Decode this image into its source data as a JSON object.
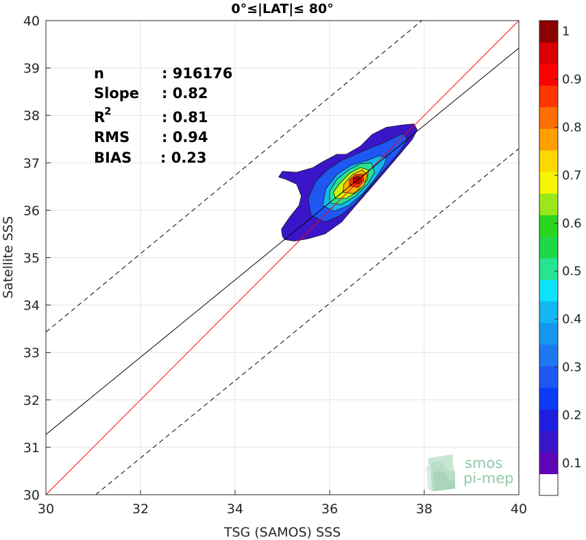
{
  "chart_data": {
    "type": "contour density scatter",
    "title": "0°≤|LAT|≤ 80°",
    "xlabel": "TSG (SAMOS) SSS",
    "ylabel": "Satellite SSS",
    "xlim": [
      30,
      40
    ],
    "ylim": [
      30,
      40
    ],
    "xticks": [
      "30",
      "32",
      "34",
      "36",
      "38",
      "40"
    ],
    "yticks": [
      "30",
      "31",
      "32",
      "33",
      "34",
      "35",
      "36",
      "37",
      "38",
      "39",
      "40"
    ],
    "grid": true,
    "stats": [
      {
        "label": "n",
        "value": ": 916176"
      },
      {
        "label": "Slope",
        "value": ": 0.82"
      },
      {
        "label": "R",
        "sup": "2",
        "value": ": 0.81"
      },
      {
        "label": "RMS",
        "value": ": 0.94"
      },
      {
        "label": "BIAS",
        "value": ": 0.23"
      }
    ],
    "lines": [
      {
        "name": "one-to-one",
        "color": "#ff0000",
        "style": "solid",
        "points": [
          [
            30,
            30
          ],
          [
            40,
            40
          ]
        ]
      },
      {
        "name": "regression",
        "color": "#000000",
        "style": "solid",
        "points": [
          [
            30,
            31.27
          ],
          [
            40,
            39.42
          ]
        ]
      },
      {
        "name": "upper-bound",
        "color": "#000000",
        "style": "dashed",
        "points": [
          [
            30,
            33.43
          ],
          [
            37.95,
            40
          ]
        ]
      },
      {
        "name": "lower-bound",
        "color": "#000000",
        "style": "dashed",
        "points": [
          [
            31.05,
            30
          ],
          [
            40,
            37.3
          ]
        ]
      }
    ],
    "contours": [
      {
        "level": 0.05,
        "color": "#3a16c8",
        "points": [
          [
            35.0,
            35.45
          ],
          [
            35.05,
            35.38
          ],
          [
            35.25,
            35.35
          ],
          [
            35.55,
            35.4
          ],
          [
            35.9,
            35.5
          ],
          [
            36.25,
            35.75
          ],
          [
            36.55,
            36.1
          ],
          [
            36.9,
            36.5
          ],
          [
            37.2,
            36.85
          ],
          [
            37.5,
            37.2
          ],
          [
            37.75,
            37.5
          ],
          [
            37.85,
            37.7
          ],
          [
            37.78,
            37.82
          ],
          [
            37.55,
            37.8
          ],
          [
            37.2,
            37.75
          ],
          [
            36.9,
            37.6
          ],
          [
            36.65,
            37.35
          ],
          [
            36.35,
            37.18
          ],
          [
            36.15,
            37.18
          ],
          [
            35.85,
            37.02
          ],
          [
            35.65,
            36.9
          ],
          [
            35.3,
            36.8
          ],
          [
            35.0,
            36.82
          ],
          [
            34.92,
            36.7
          ],
          [
            35.08,
            36.65
          ],
          [
            35.3,
            36.55
          ],
          [
            35.4,
            36.3
          ],
          [
            35.35,
            36.1
          ],
          [
            35.15,
            35.85
          ],
          [
            34.98,
            35.6
          ]
        ]
      },
      {
        "level": 0.15,
        "color": "#1f57f5",
        "points": [
          [
            35.6,
            35.9
          ],
          [
            35.9,
            35.75
          ],
          [
            36.25,
            35.9
          ],
          [
            36.55,
            36.15
          ],
          [
            36.85,
            36.5
          ],
          [
            37.15,
            36.85
          ],
          [
            37.45,
            37.2
          ],
          [
            37.65,
            37.5
          ],
          [
            37.55,
            37.62
          ],
          [
            37.2,
            37.45
          ],
          [
            36.95,
            37.35
          ],
          [
            36.6,
            37.2
          ],
          [
            36.25,
            37.05
          ],
          [
            35.95,
            36.85
          ],
          [
            35.7,
            36.6
          ],
          [
            35.55,
            36.25
          ]
        ]
      },
      {
        "level": 0.3,
        "color": "#12b6f0",
        "points": [
          [
            35.85,
            36.1
          ],
          [
            36.1,
            35.98
          ],
          [
            36.4,
            36.1
          ],
          [
            36.7,
            36.35
          ],
          [
            36.95,
            36.65
          ],
          [
            37.15,
            36.95
          ],
          [
            37.2,
            37.1
          ],
          [
            37.05,
            37.15
          ],
          [
            36.8,
            37.05
          ],
          [
            36.45,
            36.95
          ],
          [
            36.15,
            36.75
          ],
          [
            35.92,
            36.45
          ]
        ]
      },
      {
        "level": 0.45,
        "color": "#26e48f",
        "points": [
          [
            36.0,
            36.15
          ],
          [
            36.25,
            36.12
          ],
          [
            36.55,
            36.3
          ],
          [
            36.8,
            36.55
          ],
          [
            36.95,
            36.8
          ],
          [
            36.88,
            37.0
          ],
          [
            36.65,
            36.98
          ],
          [
            36.4,
            36.85
          ],
          [
            36.15,
            36.65
          ],
          [
            36.0,
            36.4
          ]
        ]
      },
      {
        "level": 0.6,
        "color": "#cdf20e",
        "points": [
          [
            36.12,
            36.25
          ],
          [
            36.35,
            36.25
          ],
          [
            36.6,
            36.4
          ],
          [
            36.8,
            36.65
          ],
          [
            36.82,
            36.85
          ],
          [
            36.65,
            36.9
          ],
          [
            36.42,
            36.78
          ],
          [
            36.2,
            36.55
          ],
          [
            36.08,
            36.38
          ]
        ]
      },
      {
        "level": 0.7,
        "color": "#ffb300",
        "points": [
          [
            36.28,
            36.38
          ],
          [
            36.5,
            36.35
          ],
          [
            36.72,
            36.52
          ],
          [
            36.8,
            36.75
          ],
          [
            36.68,
            36.85
          ],
          [
            36.48,
            36.75
          ],
          [
            36.3,
            36.55
          ]
        ]
      },
      {
        "level": 0.85,
        "color": "#ff3500",
        "points": [
          [
            36.42,
            36.52
          ],
          [
            36.6,
            36.48
          ],
          [
            36.72,
            36.62
          ],
          [
            36.7,
            36.76
          ],
          [
            36.55,
            36.75
          ],
          [
            36.42,
            36.64
          ]
        ]
      },
      {
        "level": 1.0,
        "color": "#b50008",
        "points": [
          [
            36.5,
            36.58
          ],
          [
            36.62,
            36.56
          ],
          [
            36.68,
            36.65
          ],
          [
            36.6,
            36.72
          ],
          [
            36.5,
            36.68
          ]
        ]
      }
    ],
    "colorbar": {
      "range": [
        0,
        1
      ],
      "ticks": [
        "0.1",
        "0.2",
        "0.3",
        "0.4",
        "0.5",
        "0.6",
        "0.7",
        "0.8",
        "0.9",
        "1"
      ],
      "colors": [
        "#ffffff",
        "#5e06b8",
        "#3a16c8",
        "#1f1fe0",
        "#0a3cf5",
        "#1f57f5",
        "#1c78f0",
        "#1498ee",
        "#12b6f0",
        "#0fe2fb",
        "#26e48f",
        "#1ed848",
        "#2ad51f",
        "#9be81a",
        "#f5f500",
        "#ffd700",
        "#ff9f00",
        "#ff6e00",
        "#ff3500",
        "#fe0000",
        "#d80000",
        "#8b0000"
      ]
    },
    "logo": {
      "line1": "smos",
      "line2": "pi-mep"
    }
  }
}
